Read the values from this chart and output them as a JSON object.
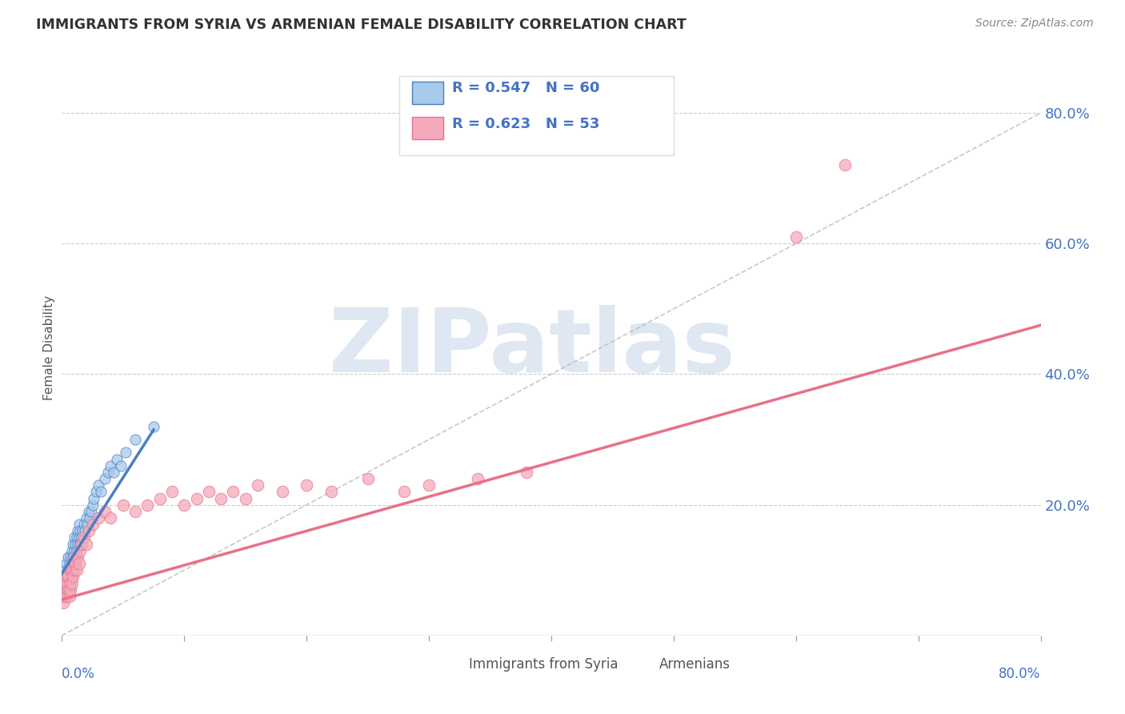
{
  "title": "IMMIGRANTS FROM SYRIA VS ARMENIAN FEMALE DISABILITY CORRELATION CHART",
  "source_text": "Source: ZipAtlas.com",
  "ylabel": "Female Disability",
  "right_yticklabels": [
    "",
    "20.0%",
    "40.0%",
    "60.0%",
    "80.0%"
  ],
  "xmin": 0.0,
  "xmax": 0.8,
  "ymin": 0.0,
  "ymax": 0.88,
  "blue_color": "#A8CAEB",
  "pink_color": "#F5AABB",
  "blue_line_color": "#4A7FC0",
  "pink_line_color": "#E8708A",
  "legend_text_color": "#4472C4",
  "title_color": "#333333",
  "watermark_color": "#C8D8EA",
  "watermark_text": "ZIPatlas",
  "legend_r1": "R = 0.547",
  "legend_n1": "N = 60",
  "legend_r2": "R = 0.623",
  "legend_n2": "N = 53",
  "legend_label1": "Immigrants from Syria",
  "legend_label2": "Armenians",
  "blue_x": [
    0.001,
    0.002,
    0.002,
    0.003,
    0.003,
    0.003,
    0.004,
    0.004,
    0.004,
    0.005,
    0.005,
    0.005,
    0.006,
    0.006,
    0.006,
    0.007,
    0.007,
    0.007,
    0.008,
    0.008,
    0.008,
    0.009,
    0.009,
    0.009,
    0.01,
    0.01,
    0.01,
    0.011,
    0.011,
    0.012,
    0.012,
    0.013,
    0.013,
    0.014,
    0.014,
    0.015,
    0.015,
    0.016,
    0.017,
    0.018,
    0.019,
    0.02,
    0.021,
    0.022,
    0.023,
    0.024,
    0.025,
    0.026,
    0.028,
    0.03,
    0.032,
    0.035,
    0.038,
    0.04,
    0.042,
    0.045,
    0.048,
    0.052,
    0.06,
    0.075
  ],
  "blue_y": [
    0.08,
    0.07,
    0.09,
    0.06,
    0.08,
    0.1,
    0.07,
    0.09,
    0.11,
    0.08,
    0.1,
    0.12,
    0.07,
    0.09,
    0.11,
    0.08,
    0.1,
    0.12,
    0.09,
    0.11,
    0.13,
    0.1,
    0.12,
    0.14,
    0.11,
    0.13,
    0.15,
    0.12,
    0.14,
    0.13,
    0.15,
    0.14,
    0.16,
    0.15,
    0.17,
    0.14,
    0.16,
    0.15,
    0.16,
    0.17,
    0.16,
    0.18,
    0.17,
    0.19,
    0.18,
    0.19,
    0.2,
    0.21,
    0.22,
    0.23,
    0.22,
    0.24,
    0.25,
    0.26,
    0.25,
    0.27,
    0.26,
    0.28,
    0.3,
    0.32
  ],
  "blue_line_x": [
    0.0,
    0.075
  ],
  "blue_line_y": [
    0.095,
    0.315
  ],
  "pink_x": [
    0.001,
    0.002,
    0.002,
    0.003,
    0.003,
    0.004,
    0.004,
    0.005,
    0.005,
    0.006,
    0.006,
    0.007,
    0.007,
    0.008,
    0.008,
    0.009,
    0.01,
    0.01,
    0.011,
    0.012,
    0.013,
    0.014,
    0.015,
    0.016,
    0.018,
    0.02,
    0.022,
    0.025,
    0.03,
    0.035,
    0.04,
    0.05,
    0.06,
    0.07,
    0.08,
    0.09,
    0.1,
    0.11,
    0.12,
    0.13,
    0.14,
    0.15,
    0.16,
    0.18,
    0.2,
    0.22,
    0.25,
    0.28,
    0.3,
    0.34,
    0.38,
    0.6,
    0.64
  ],
  "pink_y": [
    0.05,
    0.06,
    0.08,
    0.07,
    0.09,
    0.06,
    0.08,
    0.07,
    0.09,
    0.06,
    0.08,
    0.07,
    0.1,
    0.08,
    0.1,
    0.09,
    0.1,
    0.12,
    0.11,
    0.1,
    0.12,
    0.11,
    0.13,
    0.14,
    0.15,
    0.14,
    0.16,
    0.17,
    0.18,
    0.19,
    0.18,
    0.2,
    0.19,
    0.2,
    0.21,
    0.22,
    0.2,
    0.21,
    0.22,
    0.21,
    0.22,
    0.21,
    0.23,
    0.22,
    0.23,
    0.22,
    0.24,
    0.22,
    0.23,
    0.24,
    0.25,
    0.61,
    0.72
  ],
  "pink_line_x": [
    0.0,
    0.8
  ],
  "pink_line_y": [
    0.055,
    0.475
  ]
}
